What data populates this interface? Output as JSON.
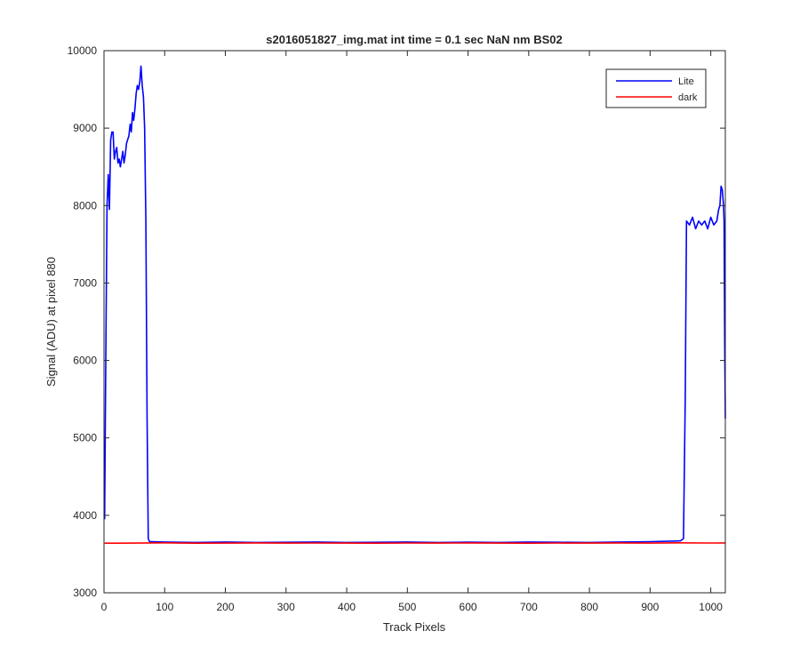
{
  "chart_data": {
    "type": "line",
    "title": "s2016051827_img.mat int time = 0.1 sec  NaN nm BS02",
    "xlabel": "Track Pixels",
    "ylabel": "Signal (ADU) at pixel 880",
    "xlim": [
      0,
      1024
    ],
    "ylim": [
      3000,
      10000
    ],
    "grid": false,
    "legend_position": "top-right",
    "x_ticks": [
      0,
      100,
      200,
      300,
      400,
      500,
      600,
      700,
      800,
      900,
      1000
    ],
    "y_ticks": [
      3000,
      4000,
      5000,
      6000,
      7000,
      8000,
      9000,
      10000
    ],
    "x_tick_labels": [
      "0",
      "100",
      "200",
      "300",
      "400",
      "500",
      "600",
      "700",
      "800",
      "900",
      "1000"
    ],
    "y_tick_labels": [
      "3000",
      "4000",
      "5000",
      "6000",
      "7000",
      "8000",
      "9000",
      "10000"
    ],
    "series": [
      {
        "name": "Lite",
        "color": "#0000ff",
        "x": [
          1,
          3,
          5,
          7,
          9,
          11,
          13,
          15,
          17,
          19,
          21,
          23,
          25,
          27,
          29,
          31,
          33,
          35,
          37,
          39,
          41,
          43,
          45,
          47,
          49,
          51,
          53,
          55,
          57,
          59,
          61,
          63,
          65,
          67,
          69,
          71,
          73,
          75,
          80,
          100,
          150,
          200,
          250,
          300,
          350,
          400,
          450,
          500,
          550,
          600,
          650,
          700,
          750,
          800,
          850,
          900,
          950,
          955,
          958,
          960,
          965,
          970,
          975,
          980,
          985,
          990,
          995,
          1000,
          1005,
          1010,
          1013,
          1015,
          1017,
          1019,
          1021,
          1022,
          1023,
          1024
        ],
        "y": [
          3950,
          6000,
          8000,
          8400,
          7950,
          8850,
          8950,
          8950,
          8600,
          8700,
          8750,
          8550,
          8600,
          8500,
          8600,
          8700,
          8550,
          8650,
          8800,
          8850,
          8900,
          9050,
          8950,
          9200,
          9100,
          9250,
          9450,
          9550,
          9500,
          9600,
          9800,
          9550,
          9400,
          9000,
          7800,
          5200,
          3700,
          3660,
          3660,
          3655,
          3650,
          3655,
          3650,
          3652,
          3655,
          3650,
          3652,
          3655,
          3650,
          3653,
          3650,
          3655,
          3652,
          3650,
          3655,
          3660,
          3670,
          3700,
          5500,
          7800,
          7750,
          7850,
          7700,
          7800,
          7750,
          7800,
          7700,
          7850,
          7750,
          7800,
          7950,
          8000,
          8250,
          8200,
          8000,
          7800,
          6200,
          5250
        ]
      },
      {
        "name": "dark",
        "color": "#ff0000",
        "x": [
          1,
          50,
          100,
          150,
          200,
          250,
          300,
          350,
          400,
          450,
          500,
          550,
          600,
          650,
          700,
          750,
          800,
          850,
          900,
          950,
          1000,
          1024
        ],
        "y": [
          3640,
          3642,
          3645,
          3640,
          3642,
          3644,
          3641,
          3643,
          3642,
          3640,
          3643,
          3641,
          3644,
          3642,
          3640,
          3643,
          3641,
          3644,
          3642,
          3645,
          3643,
          3644
        ]
      }
    ]
  }
}
